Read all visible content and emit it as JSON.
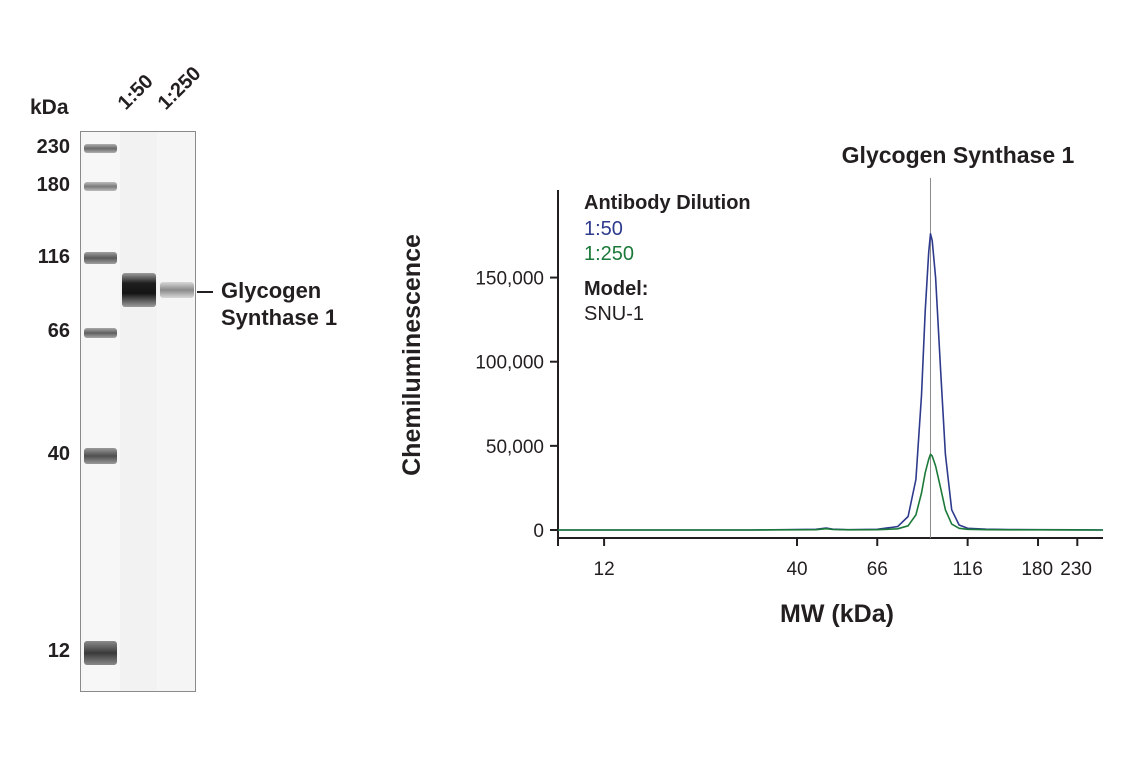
{
  "blot": {
    "unit_label": "kDa",
    "lanes": [
      "1:50",
      "1:250"
    ],
    "markers": [
      "230",
      "180",
      "116",
      "66",
      "40",
      "12"
    ],
    "target_label_line1": "Glycogen",
    "target_label_line2": "Synthase 1"
  },
  "chart_data": {
    "type": "line",
    "title": "Glycogen Synthase 1",
    "xlabel": "MW (kDa)",
    "ylabel": "Chemiluminescence",
    "x_scale": "log",
    "x_ticks": [
      12,
      40,
      66,
      116,
      180,
      230
    ],
    "x_tick_labels": [
      "12",
      "40",
      "66",
      "116",
      "180",
      "230"
    ],
    "xlim": [
      9,
      270
    ],
    "ylim": [
      -5000,
      205000
    ],
    "y_ticks": [
      0,
      50000,
      100000,
      150000
    ],
    "y_tick_labels": [
      "0",
      "50,000",
      "100,000",
      "150,000"
    ],
    "peak_marker_x": 92,
    "legend": {
      "title": "Antibody Dilution",
      "model_title": "Model:",
      "model_value": "SNU-1"
    },
    "series": [
      {
        "name": "1:50",
        "color": "#2e3a8c",
        "x": [
          9,
          30,
          45,
          48,
          50,
          55,
          66,
          75,
          80,
          84,
          87,
          89,
          91,
          92,
          93,
          95,
          98,
          101,
          105,
          110,
          116,
          130,
          150,
          180,
          230,
          270
        ],
        "y": [
          0,
          0,
          400,
          1200,
          500,
          200,
          400,
          2000,
          8000,
          30000,
          80000,
          130000,
          165000,
          176000,
          172000,
          150000,
          95000,
          45000,
          12000,
          3000,
          1000,
          500,
          300,
          200,
          100,
          0
        ]
      },
      {
        "name": "1:250",
        "color": "#1b7a3a",
        "x": [
          9,
          30,
          45,
          48,
          50,
          55,
          66,
          75,
          80,
          84,
          87,
          89,
          91,
          92,
          93,
          95,
          98,
          101,
          105,
          110,
          116,
          130,
          150,
          180,
          230,
          270
        ],
        "y": [
          0,
          0,
          200,
          800,
          300,
          100,
          200,
          700,
          2500,
          9000,
          22000,
          34000,
          42000,
          45000,
          44000,
          38000,
          25000,
          12000,
          3500,
          1000,
          400,
          200,
          100,
          100,
          50,
          0
        ]
      }
    ]
  }
}
